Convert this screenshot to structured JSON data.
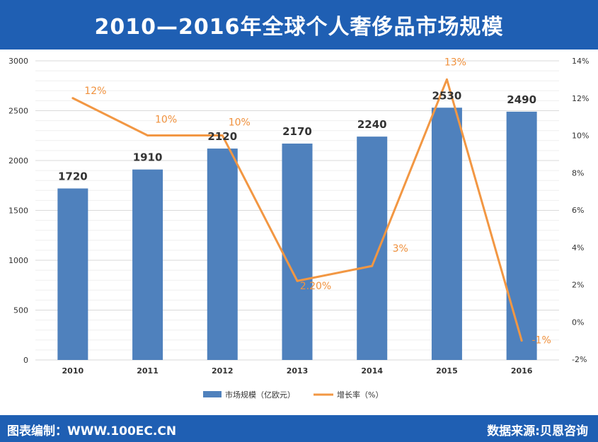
{
  "header": {
    "title": "2010—2016年全球个人奢侈品市场规模"
  },
  "footer": {
    "source_left": "图表编制：WWW.100EC.CN",
    "source_right": "数据来源:贝恩咨询"
  },
  "colors": {
    "bar": "#4f81bd",
    "line": "#f29743",
    "header_bg": "#1f5fb3",
    "grid": "#d9d9d9"
  },
  "chart_data": {
    "type": "bar",
    "categories": [
      "2010",
      "2011",
      "2012",
      "2013",
      "2014",
      "2015",
      "2016"
    ],
    "series": [
      {
        "name": "市场规模（亿欧元）",
        "type": "bar",
        "axis": "left",
        "values": [
          1720,
          1910,
          2120,
          2170,
          2240,
          2530,
          2490
        ],
        "labels": [
          "1720",
          "1910",
          "2120",
          "2170",
          "2240",
          "2530",
          "2490"
        ]
      },
      {
        "name": "增长率（%）",
        "type": "line",
        "axis": "right",
        "values": [
          12,
          10,
          10,
          2.2,
          3,
          13,
          -1
        ],
        "labels": [
          "12%",
          "10%",
          "10%",
          "2.20%",
          "3%",
          "13%",
          "-1%"
        ]
      }
    ],
    "y_left": {
      "min": 0,
      "max": 3000,
      "ticks": [
        "0",
        "500",
        "1000",
        "1500",
        "2000",
        "2500",
        "3000"
      ]
    },
    "y_right": {
      "min": -2,
      "max": 14,
      "ticks": [
        "-2%",
        "0%",
        "2%",
        "4%",
        "6%",
        "8%",
        "10%",
        "12%",
        "14%"
      ]
    },
    "grid": true,
    "legend_position": "bottom"
  }
}
